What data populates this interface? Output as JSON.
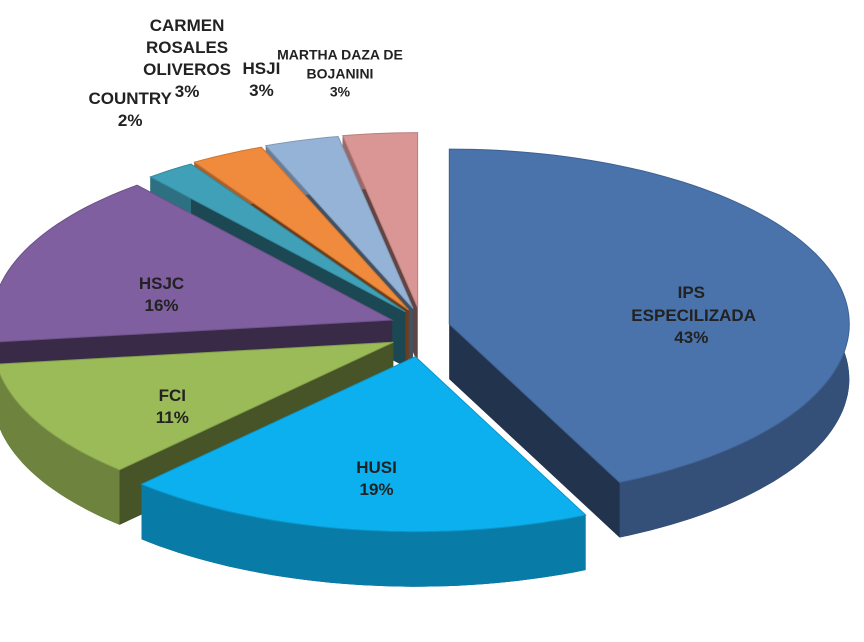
{
  "chart_data": {
    "type": "pie",
    "categories": [
      "IPS ESPECILIZADA",
      "HUSI",
      "FCI",
      "HSJC",
      "COUNTRY",
      "CARMEN ROSALES OLIVEROS",
      "HSJI",
      "MARTHA DAZA DE BOJANINI"
    ],
    "values": [
      43,
      19,
      11,
      16,
      2,
      3,
      3,
      3
    ],
    "value_labels": [
      "43%",
      "19%",
      "11%",
      "16%",
      "2%",
      "3%",
      "3%",
      "3%"
    ],
    "colors": [
      "#4a72ab",
      "#0cb0ee",
      "#9bbb59",
      "#7f5f9f",
      "#3fa0b8",
      "#f08a3c",
      "#95b3d7",
      "#d99694"
    ]
  }
}
